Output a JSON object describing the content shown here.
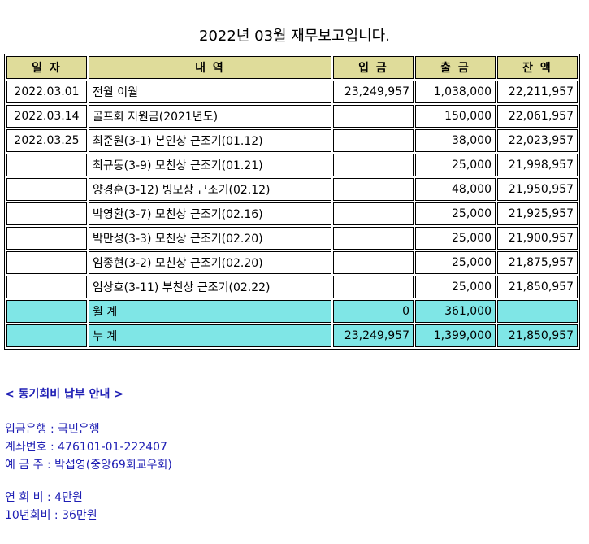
{
  "title": "2022년 03월 재무보고입니다.",
  "table": {
    "headers": [
      "일  자",
      "내          역",
      "입    금",
      "출    금",
      "잔    액"
    ],
    "rows": [
      {
        "date": "2022.03.01",
        "desc": "전월 이월",
        "in": "23,249,957",
        "out": "1,038,000",
        "bal": "22,211,957"
      },
      {
        "date": "2022.03.14",
        "desc": "골프회 지원금(2021년도)",
        "in": "",
        "out": "150,000",
        "bal": "22,061,957"
      },
      {
        "date": "2022.03.25",
        "desc": "최준원(3-1) 본인상 근조기(01.12)",
        "in": "",
        "out": "38,000",
        "bal": "22,023,957"
      },
      {
        "date": "",
        "desc": "최규동(3-9) 모친상 근조기(01.21)",
        "in": "",
        "out": "25,000",
        "bal": "21,998,957"
      },
      {
        "date": "",
        "desc": "양경훈(3-12) 빙모상 근조기(02.12)",
        "in": "",
        "out": "48,000",
        "bal": "21,950,957"
      },
      {
        "date": "",
        "desc": "박영환(3-7) 모친상 근조기(02.16)",
        "in": "",
        "out": "25,000",
        "bal": "21,925,957"
      },
      {
        "date": "",
        "desc": "박만성(3-3) 모친상 근조기(02.20)",
        "in": "",
        "out": "25,000",
        "bal": "21,900,957"
      },
      {
        "date": "",
        "desc": "임종현(3-2) 모친상 근조기(02.20)",
        "in": "",
        "out": "25,000",
        "bal": "21,875,957"
      },
      {
        "date": "",
        "desc": "임상호(3-11) 부친상 근조기(02.22)",
        "in": "",
        "out": "25,000",
        "bal": "21,850,957"
      }
    ],
    "monthly": {
      "label": "월    계",
      "in": "0",
      "out": "361,000",
      "bal": ""
    },
    "cumulative": {
      "label": "누    계",
      "in": "23,249,957",
      "out": "1,399,000",
      "bal": "21,850,957"
    }
  },
  "notice": {
    "title": "< 동기회비 납부 안내 >",
    "bank": "입금은행 : 국민은행",
    "account": "계좌번호 : 476101-01-222407",
    "holder": "예 금 주 : 박섭영(중앙69회교우회)",
    "annual": "연 회 비 : 4만원",
    "ten_year": "10년회비 : 36만원"
  },
  "colors": {
    "header_bg": "#dfdc9a",
    "summary_bg": "#7fe6e6",
    "notice_text": "#1e1eb4"
  }
}
